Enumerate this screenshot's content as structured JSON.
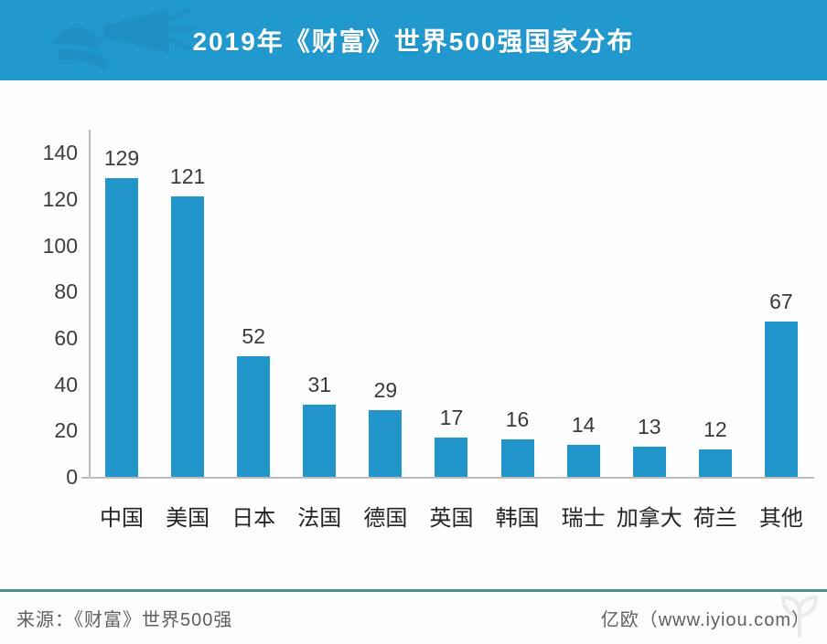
{
  "header": {
    "title": "2019年《财富》世界500强国家分布",
    "bg_color": "#2199CE"
  },
  "chart_data": {
    "type": "bar",
    "title": "2019年《财富》世界500强国家分布",
    "categories": [
      "中国",
      "美国",
      "日本",
      "法国",
      "德国",
      "英国",
      "韩国",
      "瑞士",
      "加拿大",
      "荷兰",
      "其他"
    ],
    "values": [
      129,
      121,
      52,
      31,
      29,
      17,
      16,
      14,
      13,
      12,
      67
    ],
    "xlabel": "",
    "ylabel": "",
    "ylim": [
      0,
      150
    ],
    "yticks": [
      0,
      20,
      40,
      60,
      80,
      100,
      120,
      140
    ],
    "bar_color": "#2296CA",
    "grid": false,
    "legend": "none",
    "value_labels_shown": true
  },
  "footer": {
    "source": "来源：《财富》世界500强",
    "credit": "亿欧（www.iyiou.com）",
    "divider_color": "#4F9184"
  }
}
